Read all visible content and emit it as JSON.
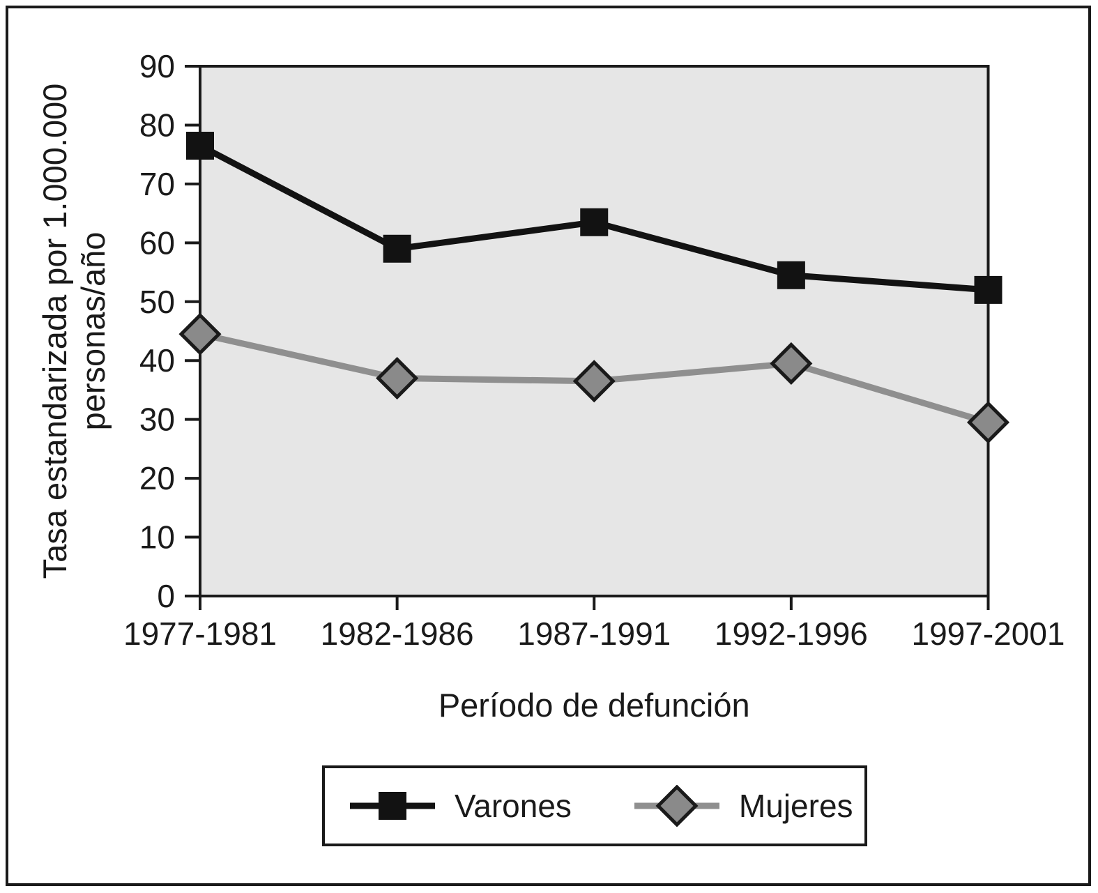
{
  "figure": {
    "y_axis_title_line1": "Tasa estandarizada por 1.000.000",
    "y_axis_title_line2": "personas/año",
    "x_axis_title": "Período de defunción"
  },
  "chart_data": {
    "type": "line",
    "categories": [
      "1977-1981",
      "1982-1986",
      "1987-1991",
      "1992-1996",
      "1997-2001"
    ],
    "series": [
      {
        "name": "Varones",
        "values": [
          76.5,
          59,
          63.5,
          54.5,
          52
        ],
        "color": "#121212",
        "marker": "square",
        "marker_fill": "#121212",
        "marker_stroke": "#121212"
      },
      {
        "name": "Mujeres",
        "values": [
          44.5,
          37,
          36.5,
          39.5,
          29.5
        ],
        "color": "#8f8f8f",
        "marker": "diamond",
        "marker_fill": "#8a8a8a",
        "marker_stroke": "#1a1a1a"
      }
    ],
    "title": "",
    "xlabel": "Período de defunción",
    "ylabel": "Tasa estandarizada por 1.000.000 personas/año",
    "ylim": [
      0,
      90
    ],
    "y_ticks": [
      0,
      10,
      20,
      30,
      40,
      50,
      60,
      70,
      80,
      90
    ],
    "grid": false,
    "legend_position": "bottom-center",
    "plot_bg": "#e6e6e6",
    "axis_color": "#1a1a1a"
  }
}
